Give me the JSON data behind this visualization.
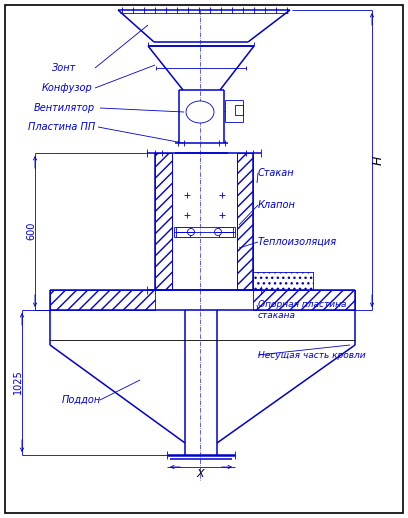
{
  "bg_color": "#ffffff",
  "line_color": "#0000cd",
  "lw_thin": 0.6,
  "lw_med": 1.1,
  "lw_thick": 1.8,
  "labels": {
    "zont": "Зонт",
    "konfuzor": "Конфузор",
    "ventilyator": "Вентилятор",
    "plastina": "Пластина ПП",
    "stakan": "Стакан",
    "klapan": "Клапон",
    "teploizol": "Теплоизоляция",
    "opornaya": "Опорная пластина\nстакана",
    "nesudshaya": "Несущая часть кровли",
    "poddon": "Поддон",
    "dim_600": "600",
    "dim_1025": "1025",
    "dim_H": "H",
    "dim_X": "X"
  }
}
